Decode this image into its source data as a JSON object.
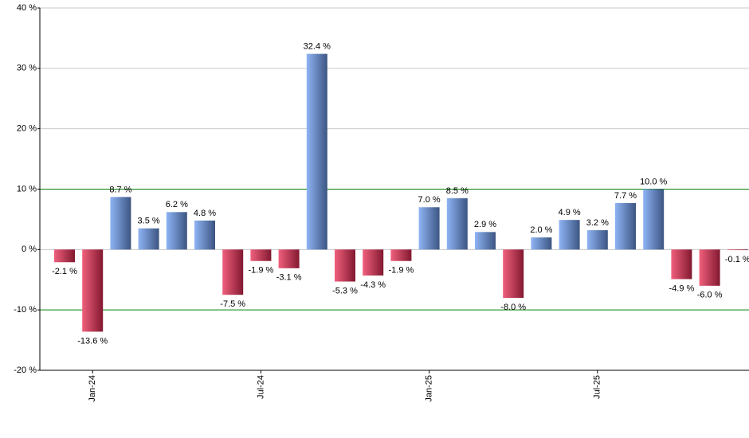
{
  "chart_data": {
    "type": "bar",
    "categories": [
      null,
      "Jan-24",
      null,
      null,
      null,
      null,
      null,
      "Jul-24",
      null,
      null,
      null,
      null,
      null,
      "Jan-25",
      null,
      null,
      null,
      null,
      null,
      "Jul-25",
      null,
      null,
      null,
      null,
      null
    ],
    "values": [
      -2.1,
      -13.6,
      8.7,
      3.5,
      6.2,
      4.8,
      -7.5,
      -1.9,
      -3.1,
      32.4,
      -5.3,
      -4.3,
      -1.9,
      7.0,
      8.5,
      2.9,
      -8.0,
      2.0,
      4.9,
      3.2,
      7.7,
      10.0,
      -4.9,
      -6.0,
      -0.1
    ],
    "value_labels": [
      "-2.1 %",
      "-13.6 %",
      "8.7 %",
      "3.5 %",
      "6.2 %",
      "4.8 %",
      "-7.5 %",
      "-1.9 %",
      "-3.1 %",
      "32.4 %",
      "-5.3 %",
      "-4.3 %",
      "-1.9 %",
      "7.0 %",
      "8.5 %",
      "2.9 %",
      "-8.0 %",
      "2.0 %",
      "4.9 %",
      "3.2 %",
      "7.7 %",
      "10.0 %",
      "-4.9 %",
      "-6.0 %",
      "-0.1 %"
    ],
    "positive_color": [
      "#8fb4f5",
      "#3c5582"
    ],
    "negative_color": [
      "#f0607c",
      "#821830"
    ],
    "ylim": [
      -20,
      40
    ],
    "yticks": [
      {
        "value": -20,
        "label": "-20 %"
      },
      {
        "value": -10,
        "label": "-10 %"
      },
      {
        "value": 0,
        "label": "0 %"
      },
      {
        "value": 10,
        "label": "10 %"
      },
      {
        "value": 20,
        "label": "20 %"
      },
      {
        "value": 30,
        "label": "30 %"
      },
      {
        "value": 40,
        "label": "40 %"
      }
    ],
    "grid": true,
    "grid_color": "#c8c8c8",
    "reference_lines": [
      {
        "value": 10,
        "color": "#008000"
      },
      {
        "value": -10,
        "color": "#008000"
      }
    ]
  }
}
